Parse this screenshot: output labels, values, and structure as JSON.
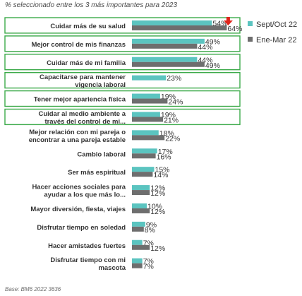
{
  "subtitle": "% seleccionado entre los 3 más importantes para 2023",
  "source": "Base: BM6 2022  3636",
  "colors": {
    "series1": "#5bc4c0",
    "series2": "#6e6e6e",
    "highlight_border": "#3caa4a",
    "arrow": "#e0241b",
    "text": "#333333"
  },
  "chart_data": {
    "type": "bar",
    "orientation": "horizontal",
    "categories": [
      [
        "Cuidar más de su salud"
      ],
      [
        "Mejor control de mis finanzas"
      ],
      [
        "Cuidar más de mi familia"
      ],
      [
        "Capacitarse para mantener",
        "vigencia laboral"
      ],
      [
        "Tener mejor apariencia física"
      ],
      [
        "Cuidar al medio ambiente a",
        "través del control de mi..."
      ],
      [
        "Mejor relación con mi pareja o",
        "encontrar a una pareja estable"
      ],
      [
        "Cambio laboral"
      ],
      [
        "Ser más espiritual"
      ],
      [
        "Hacer acciones sociales para",
        "ayudar a los que más lo..."
      ],
      [
        "Mayor diversión, fiesta, viajes"
      ],
      [
        "Disfrutar tiempo en soledad"
      ],
      [
        "Hacer amistades fuertes"
      ],
      [
        "Disfrutar tiempo con mi",
        "mascota"
      ]
    ],
    "series": [
      {
        "name": "Sept/Oct 22",
        "values": [
          54,
          49,
          44,
          23,
          19,
          19,
          18,
          17,
          15,
          12,
          10,
          9,
          7,
          7
        ],
        "labels": [
          "54%",
          "49%",
          "44%",
          "23%",
          "19%",
          "19%",
          "18%",
          "17%",
          "15%",
          "12%",
          "10%",
          "9%",
          "7%",
          "7%"
        ]
      },
      {
        "name": "Ene-Mar 22",
        "values": [
          64,
          44,
          49,
          null,
          24,
          21,
          22,
          16,
          14,
          12,
          12,
          8,
          12,
          7
        ],
        "labels": [
          "64%",
          "44%",
          "49%",
          null,
          "24%",
          "21%",
          "22%",
          "16%",
          "14%",
          "12%",
          "12%",
          "8%",
          "12%",
          "7%"
        ]
      }
    ],
    "highlighted_categories": [
      0,
      1,
      2,
      3,
      4,
      5
    ],
    "annotations": [
      {
        "type": "down-arrow",
        "category": 0
      }
    ],
    "legend_position": "right",
    "grid": false
  }
}
